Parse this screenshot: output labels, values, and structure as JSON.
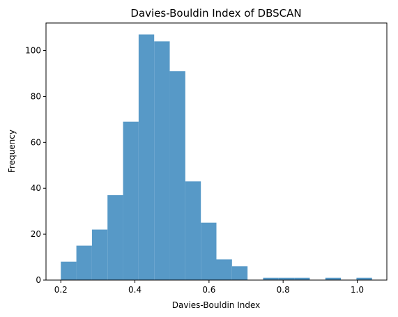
{
  "chart_data": {
    "type": "bar",
    "title": "Davies-Bouldin Index of DBSCAN",
    "xlabel": "Davies-Bouldin Index",
    "ylabel": "Frequency",
    "bar_color": "#5799c7",
    "grid": false,
    "xlim": [
      0.16,
      1.08
    ],
    "ylim": [
      0,
      112
    ],
    "x_ticks": [
      {
        "value": 0.2,
        "label": "0.2"
      },
      {
        "value": 0.4,
        "label": "0.4"
      },
      {
        "value": 0.6,
        "label": "0.6"
      },
      {
        "value": 0.8,
        "label": "0.8"
      },
      {
        "value": 1.0,
        "label": "1.0"
      }
    ],
    "y_ticks": [
      {
        "value": 0,
        "label": "0"
      },
      {
        "value": 20,
        "label": "20"
      },
      {
        "value": 40,
        "label": "40"
      },
      {
        "value": 60,
        "label": "60"
      },
      {
        "value": 80,
        "label": "80"
      },
      {
        "value": 100,
        "label": "100"
      }
    ],
    "bin_edges": [
      0.2,
      0.242,
      0.284,
      0.326,
      0.368,
      0.41,
      0.452,
      0.494,
      0.536,
      0.578,
      0.62,
      0.662,
      0.704,
      0.746,
      0.788,
      0.83,
      0.872,
      0.914,
      0.956,
      0.998,
      1.04
    ],
    "counts": [
      8,
      15,
      22,
      37,
      69,
      107,
      104,
      91,
      43,
      25,
      9,
      6,
      0,
      1,
      1,
      1,
      0,
      1,
      0,
      1
    ]
  }
}
